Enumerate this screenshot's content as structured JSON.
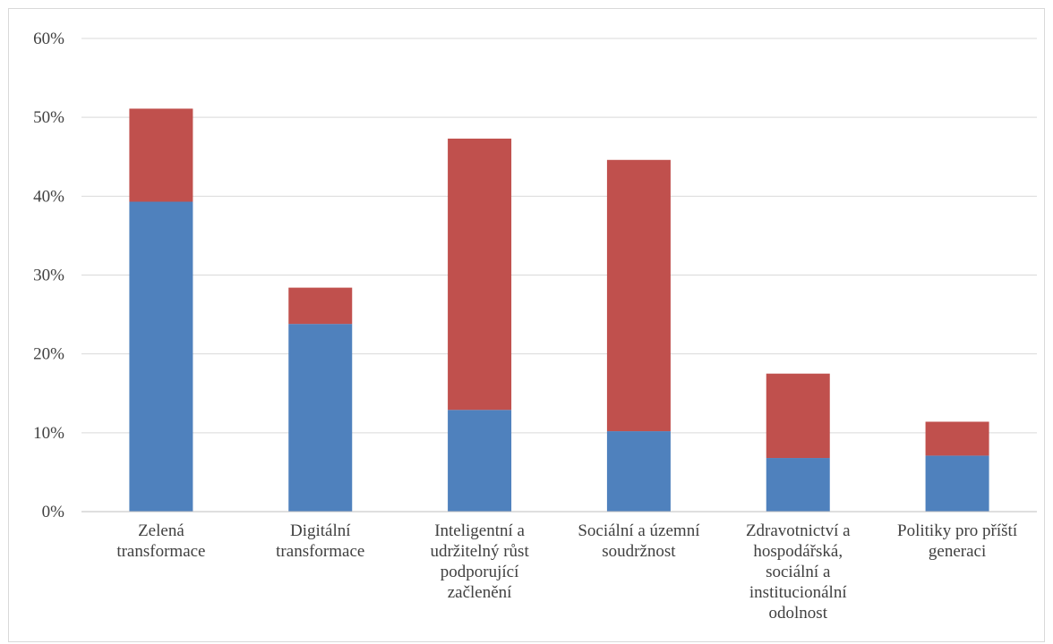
{
  "chart_data": {
    "type": "bar",
    "stacked": true,
    "categories": [
      [
        "Zelená",
        "transformace"
      ],
      [
        "Digitální",
        "transformace"
      ],
      [
        "Inteligentní a",
        "udržitelný růst",
        "podporující",
        "začlenění"
      ],
      [
        "Sociální a územní",
        "soudržnost"
      ],
      [
        "Zdravotnictví a",
        "hospodářská,",
        "sociální a",
        "institucionální",
        "odolnost"
      ],
      [
        "Politiky pro příští",
        "generaci"
      ]
    ],
    "series": [
      {
        "color": "#4f81bd",
        "values": [
          39.3,
          23.8,
          12.9,
          10.2,
          6.8,
          7.1
        ]
      },
      {
        "color": "#c0504d",
        "values": [
          11.8,
          4.6,
          34.4,
          34.4,
          10.7,
          4.3
        ]
      }
    ],
    "yticks": [
      "0%",
      "10%",
      "20%",
      "30%",
      "40%",
      "50%",
      "60%"
    ],
    "ylim": [
      0,
      60
    ],
    "grid": true,
    "title": "",
    "xlabel": "",
    "ylabel": ""
  }
}
